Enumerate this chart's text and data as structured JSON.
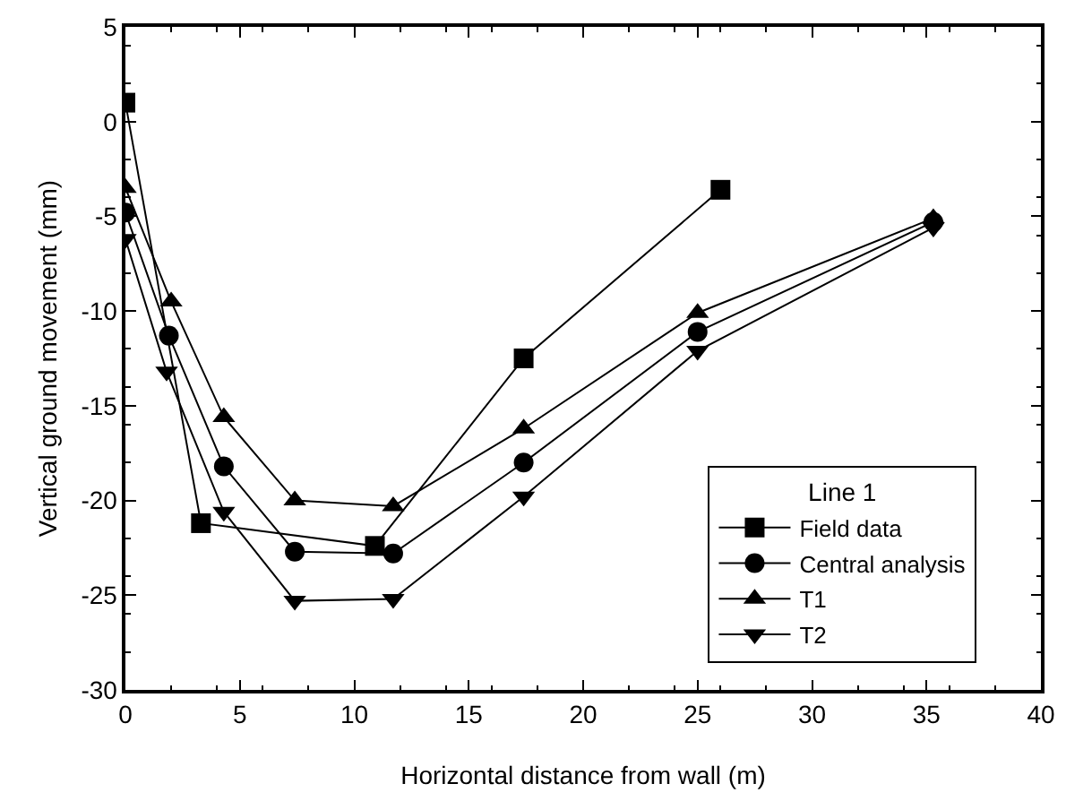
{
  "chart_data": {
    "type": "line",
    "xlabel": "Horizontal distance from wall (m)",
    "ylabel": "Vertical ground movement (mm)",
    "legend_title": "Line 1",
    "legend": "bottom right",
    "grid": false,
    "xlim": [
      0,
      40
    ],
    "xticks": [
      0,
      5,
      10,
      15,
      20,
      25,
      30,
      35,
      40
    ],
    "ylim": [
      -30,
      5
    ],
    "yticks": [
      -30,
      -25,
      -20,
      -15,
      -10,
      -5,
      0,
      5
    ],
    "series": [
      {
        "name": "Field data",
        "color": "#000000",
        "marker": "square",
        "x": [
          0,
          3.3,
          10.9,
          17.4,
          26
        ],
        "values": [
          1,
          -21.2,
          -22.4,
          -12.5,
          -3.6
        ]
      },
      {
        "name": "Central analysis",
        "color": "#000000",
        "marker": "circle",
        "x": [
          0,
          1.9,
          4.3,
          7.4,
          11.7,
          17.4,
          25,
          35.3
        ],
        "values": [
          -4.8,
          -11.3,
          -18.2,
          -22.7,
          -22.8,
          -18,
          -11.1,
          -5.3
        ]
      },
      {
        "name": "T1",
        "color": "#000000",
        "marker": "triangle",
        "x": [
          0,
          2.0,
          4.3,
          7.4,
          11.7,
          17.4,
          25,
          35.3
        ],
        "values": [
          -3.5,
          -9.5,
          -15.6,
          -20,
          -20.3,
          -16.2,
          -10.1,
          -5.1
        ]
      },
      {
        "name": "T2",
        "color": "#000000",
        "marker": "triangle-down",
        "x": [
          0,
          1.8,
          4.3,
          7.4,
          11.7,
          17.4,
          25,
          35.3
        ],
        "values": [
          -6.2,
          -13.2,
          -20.6,
          -25.3,
          -25.2,
          -19.8,
          -12.1,
          -5.6
        ]
      }
    ]
  }
}
